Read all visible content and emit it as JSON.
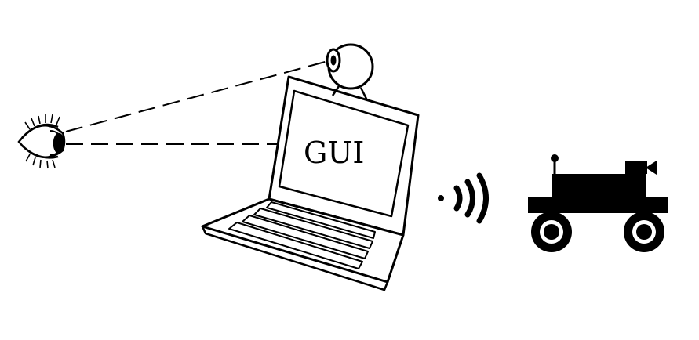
{
  "diagram": {
    "screen_label": "GUI",
    "icons": [
      "eye-icon",
      "webcam-icon",
      "laptop-icon",
      "wireless-signal-icon",
      "robot-rover-icon",
      "rover-camera-icon"
    ],
    "colors": {
      "ink": "#000000",
      "background": "#ffffff"
    }
  }
}
